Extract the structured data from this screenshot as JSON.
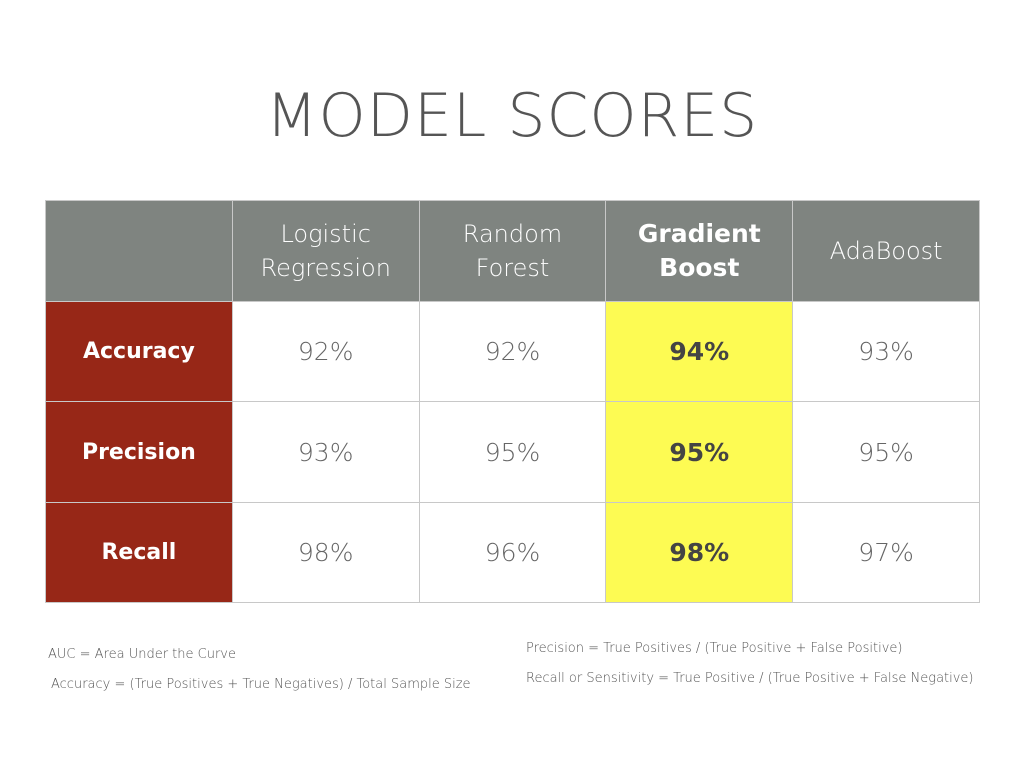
{
  "title": "MODEL SCORES",
  "table": {
    "columns": [
      {
        "line1": "Logistic",
        "line2": "Regression",
        "best": false
      },
      {
        "line1": "Random",
        "line2": "Forest",
        "best": false
      },
      {
        "line1": "Gradient",
        "line2": "Boost",
        "best": true
      },
      {
        "line1": "AdaBoost",
        "line2": "",
        "best": false
      }
    ],
    "rows": [
      {
        "label": "Accuracy",
        "values": [
          "92%",
          "92%",
          "94%",
          "93%"
        ]
      },
      {
        "label": "Precision",
        "values": [
          "93%",
          "95%",
          "95%",
          "95%"
        ]
      },
      {
        "label": "Recall",
        "values": [
          "98%",
          "96%",
          "98%",
          "97%"
        ]
      }
    ]
  },
  "notes": {
    "auc": "AUC = Area Under the Curve",
    "accuracy": "Accuracy = (True Positives + True Negatives) / Total Sample Size",
    "precision": "Precision = True Positives / (True Positive + False Positive)",
    "recall": "Recall or Sensitivity  = True Positive / (True Positive + False Negative)"
  },
  "colors": {
    "header_bg": "#7f8480",
    "row_header_bg": "#972717",
    "highlight": "#fdfb53",
    "title": "#555555"
  }
}
